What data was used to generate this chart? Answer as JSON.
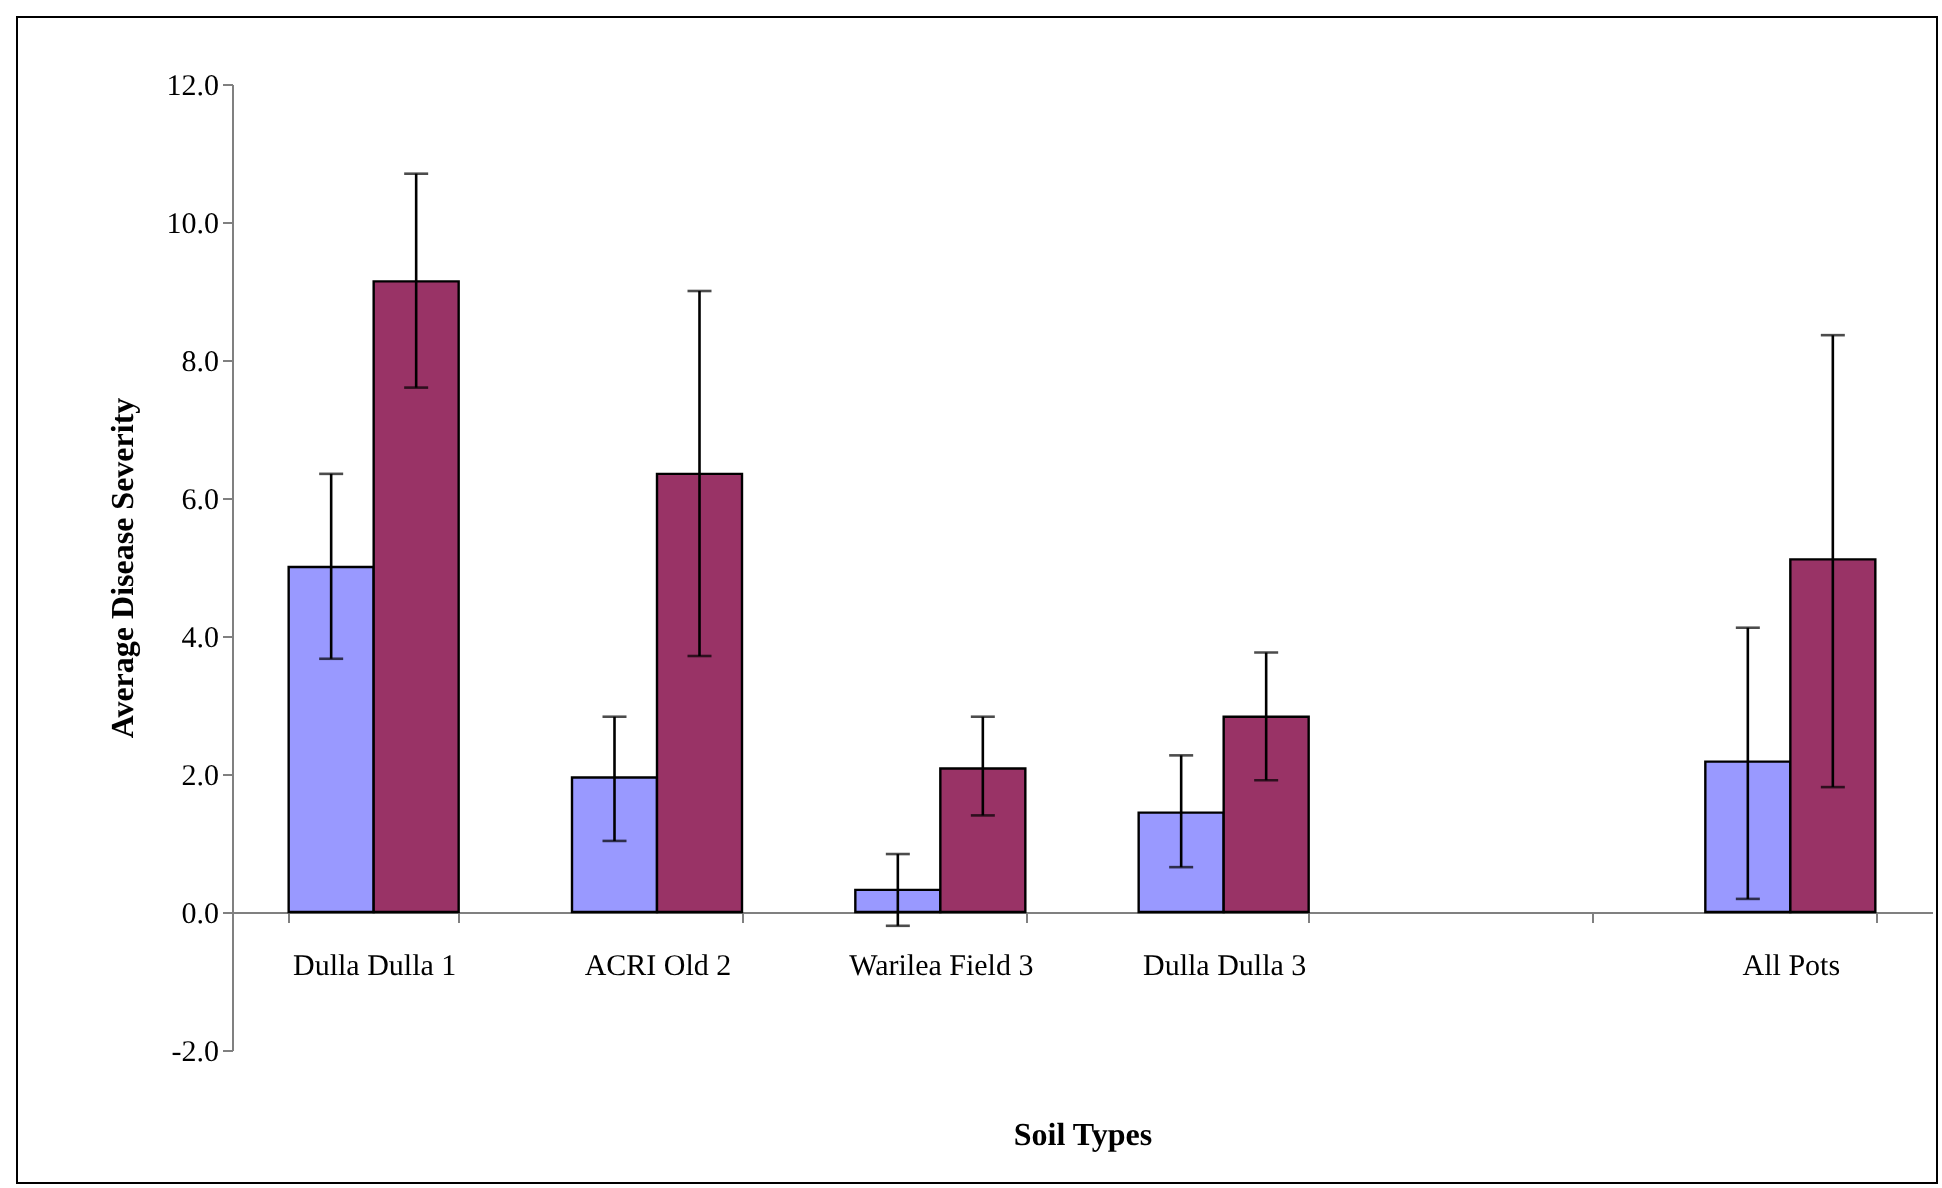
{
  "chart_data": {
    "type": "bar",
    "xlabel": "Soil Types",
    "ylabel": "Average Disease Severity",
    "categories": [
      "Dulla Dulla 1",
      "ACRI Old 2",
      "Warilea Field 3",
      "Dulla Dulla 3",
      null,
      "All Pots"
    ],
    "series": [
      {
        "color": "#9999ff",
        "values": [
          5.0,
          1.95,
          0.32,
          1.44,
          null,
          2.18
        ],
        "errors": [
          [
            3.67,
            6.35
          ],
          [
            1.03,
            2.83
          ],
          [
            -0.2,
            0.84
          ],
          [
            0.65,
            2.27
          ],
          null,
          [
            0.19,
            4.12
          ]
        ]
      },
      {
        "color": "#993366",
        "values": [
          9.14,
          6.35,
          2.08,
          2.83,
          null,
          5.11
        ],
        "errors": [
          [
            7.6,
            10.7
          ],
          [
            3.71,
            9.0
          ],
          [
            1.4,
            2.83
          ],
          [
            1.91,
            3.76
          ],
          null,
          [
            1.81,
            8.36
          ]
        ]
      }
    ],
    "ylim": [
      -2,
      12
    ],
    "yticks": [
      {
        "value": -2,
        "label": "-2.0"
      },
      {
        "value": 0,
        "label": "0.0"
      },
      {
        "value": 2,
        "label": "2.0"
      },
      {
        "value": 4,
        "label": "4.0"
      },
      {
        "value": 6,
        "label": "6.0"
      },
      {
        "value": 8,
        "label": "8.0"
      },
      {
        "value": 10,
        "label": "10.0"
      },
      {
        "value": 12,
        "label": "12.0"
      }
    ],
    "grid": false,
    "legend": false
  }
}
